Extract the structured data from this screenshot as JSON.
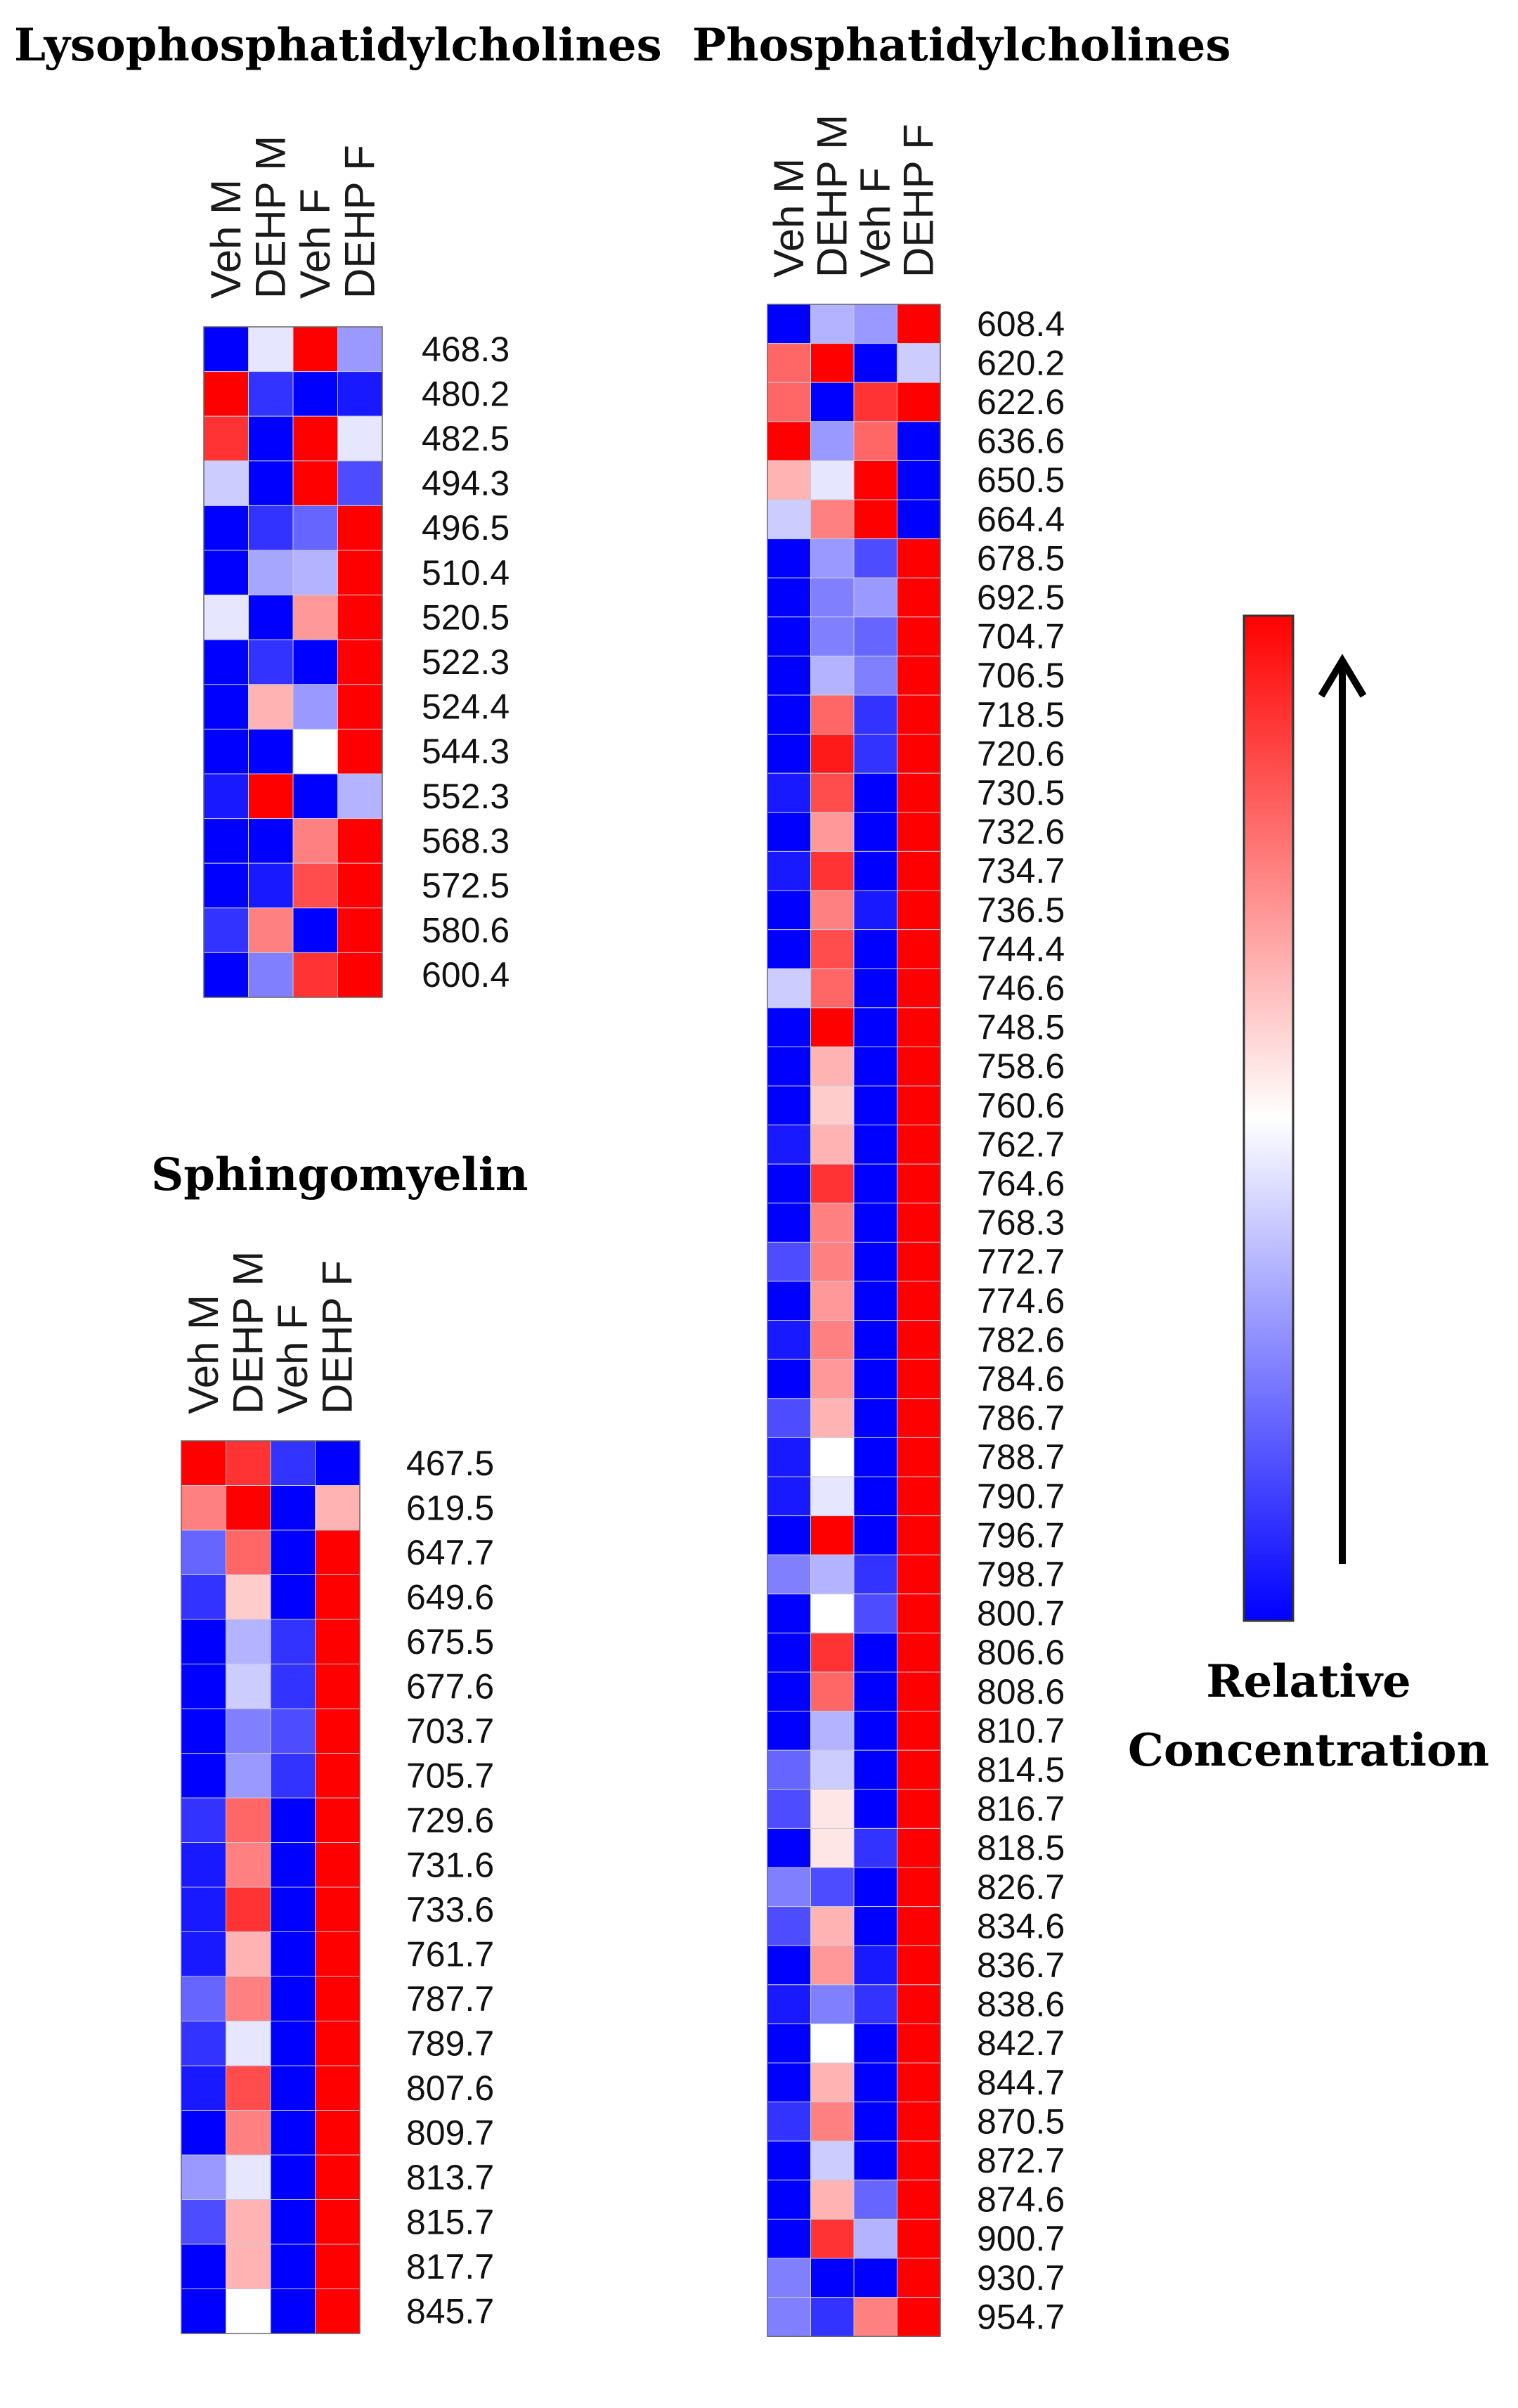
{
  "chart_data": [
    {
      "type": "heatmap",
      "title": "Lysophosphatidylcholines",
      "columns": [
        "Veh M",
        "DEHP M",
        "Veh F",
        "DEHP F"
      ],
      "rows": [
        "468.3",
        "480.2",
        "482.5",
        "494.3",
        "496.5",
        "510.4",
        "520.5",
        "522.3",
        "524.4",
        "544.3",
        "552.3",
        "568.3",
        "572.5",
        "580.6",
        "600.4"
      ],
      "values": [
        [
          -1.0,
          -0.1,
          1.0,
          -0.4
        ],
        [
          1.0,
          -0.8,
          -1.0,
          -0.9
        ],
        [
          0.8,
          -1.0,
          1.0,
          -0.1
        ],
        [
          -0.2,
          -1.0,
          1.0,
          -0.7
        ],
        [
          -1.0,
          -0.8,
          -0.6,
          1.0
        ],
        [
          -1.0,
          -0.35,
          -0.3,
          1.0
        ],
        [
          -0.1,
          -1.0,
          0.4,
          1.0
        ],
        [
          -1.0,
          -0.8,
          -1.0,
          1.0
        ],
        [
          -1.0,
          0.3,
          -0.4,
          1.0
        ],
        [
          -1.0,
          -1.0,
          0.0,
          1.0
        ],
        [
          -0.9,
          1.0,
          -1.0,
          -0.3
        ],
        [
          -1.0,
          -1.0,
          0.5,
          1.0
        ],
        [
          -1.0,
          -0.9,
          0.7,
          1.0
        ],
        [
          -0.8,
          0.5,
          -1.0,
          1.0
        ],
        [
          -1.0,
          -0.5,
          0.8,
          1.0
        ]
      ]
    },
    {
      "type": "heatmap",
      "title": "Sphingomyelin",
      "columns": [
        "Veh M",
        "DEHP M",
        "Veh F",
        "DEHP F"
      ],
      "rows": [
        "467.5",
        "619.5",
        "647.7",
        "649.6",
        "675.5",
        "677.6",
        "703.7",
        "705.7",
        "729.6",
        "731.6",
        "733.6",
        "761.7",
        "787.7",
        "789.7",
        "807.6",
        "809.7",
        "813.7",
        "815.7",
        "817.7",
        "845.7"
      ],
      "values": [
        [
          1.0,
          0.8,
          -0.8,
          -1.0
        ],
        [
          0.5,
          1.0,
          -1.0,
          0.3
        ],
        [
          -0.6,
          0.6,
          -1.0,
          1.0
        ],
        [
          -0.8,
          0.2,
          -1.0,
          1.0
        ],
        [
          -1.0,
          -0.3,
          -0.8,
          1.0
        ],
        [
          -1.0,
          -0.2,
          -0.8,
          1.0
        ],
        [
          -1.0,
          -0.5,
          -0.7,
          1.0
        ],
        [
          -1.0,
          -0.4,
          -0.8,
          1.0
        ],
        [
          -0.8,
          0.6,
          -1.0,
          1.0
        ],
        [
          -0.9,
          0.5,
          -1.0,
          1.0
        ],
        [
          -0.9,
          0.8,
          -1.0,
          1.0
        ],
        [
          -0.9,
          0.3,
          -1.0,
          1.0
        ],
        [
          -0.6,
          0.5,
          -1.0,
          1.0
        ],
        [
          -0.8,
          -0.1,
          -1.0,
          1.0
        ],
        [
          -0.9,
          0.7,
          -1.0,
          1.0
        ],
        [
          -1.0,
          0.5,
          -1.0,
          1.0
        ],
        [
          -0.4,
          -0.1,
          -1.0,
          1.0
        ],
        [
          -0.7,
          0.3,
          -1.0,
          1.0
        ],
        [
          -1.0,
          0.3,
          -1.0,
          1.0
        ],
        [
          -1.0,
          0.0,
          -1.0,
          1.0
        ]
      ]
    },
    {
      "type": "heatmap",
      "title": "Phosphatidylcholines",
      "columns": [
        "Veh M",
        "DEHP M",
        "Veh F",
        "DEHP F"
      ],
      "rows": [
        "608.4",
        "620.2",
        "622.6",
        "636.6",
        "650.5",
        "664.4",
        "678.5",
        "692.5",
        "704.7",
        "706.5",
        "718.5",
        "720.6",
        "730.5",
        "732.6",
        "734.7",
        "736.5",
        "744.4",
        "746.6",
        "748.5",
        "758.6",
        "760.6",
        "762.7",
        "764.6",
        "768.3",
        "772.7",
        "774.6",
        "782.6",
        "784.6",
        "786.7",
        "788.7",
        "790.7",
        "796.7",
        "798.7",
        "800.7",
        "806.6",
        "808.6",
        "810.7",
        "814.5",
        "816.7",
        "818.5",
        "826.7",
        "834.6",
        "836.7",
        "838.6",
        "842.7",
        "844.7",
        "870.5",
        "872.7",
        "874.6",
        "900.7",
        "930.7",
        "954.7"
      ],
      "values": [
        [
          -1.0,
          -0.3,
          -0.4,
          1.0
        ],
        [
          0.6,
          1.0,
          -1.0,
          -0.2
        ],
        [
          0.6,
          -1.0,
          0.8,
          1.0
        ],
        [
          1.0,
          -0.4,
          0.6,
          -1.0
        ],
        [
          0.3,
          -0.1,
          1.0,
          -1.0
        ],
        [
          -0.2,
          0.5,
          1.0,
          -1.0
        ],
        [
          -1.0,
          -0.4,
          -0.7,
          1.0
        ],
        [
          -1.0,
          -0.5,
          -0.4,
          1.0
        ],
        [
          -1.0,
          -0.5,
          -0.6,
          1.0
        ],
        [
          -1.0,
          -0.3,
          -0.5,
          1.0
        ],
        [
          -1.0,
          0.6,
          -0.8,
          1.0
        ],
        [
          -1.0,
          0.9,
          -0.8,
          1.0
        ],
        [
          -0.9,
          0.7,
          -1.0,
          1.0
        ],
        [
          -1.0,
          0.4,
          -1.0,
          1.0
        ],
        [
          -0.9,
          0.8,
          -1.0,
          1.0
        ],
        [
          -1.0,
          0.5,
          -0.9,
          1.0
        ],
        [
          -1.0,
          0.7,
          -1.0,
          1.0
        ],
        [
          -0.2,
          0.6,
          -1.0,
          1.0
        ],
        [
          -1.0,
          1.0,
          -1.0,
          1.0
        ],
        [
          -1.0,
          0.3,
          -1.0,
          1.0
        ],
        [
          -1.0,
          0.2,
          -1.0,
          1.0
        ],
        [
          -0.9,
          0.3,
          -1.0,
          1.0
        ],
        [
          -1.0,
          0.8,
          -1.0,
          1.0
        ],
        [
          -1.0,
          0.5,
          -1.0,
          1.0
        ],
        [
          -0.7,
          0.5,
          -1.0,
          1.0
        ],
        [
          -1.0,
          0.4,
          -1.0,
          1.0
        ],
        [
          -0.9,
          0.5,
          -1.0,
          1.0
        ],
        [
          -1.0,
          0.4,
          -1.0,
          1.0
        ],
        [
          -0.7,
          0.3,
          -1.0,
          1.0
        ],
        [
          -0.9,
          0.0,
          -1.0,
          1.0
        ],
        [
          -0.9,
          -0.1,
          -1.0,
          1.0
        ],
        [
          -1.0,
          1.0,
          -1.0,
          1.0
        ],
        [
          -0.5,
          -0.3,
          -0.8,
          1.0
        ],
        [
          -1.0,
          0.0,
          -0.7,
          1.0
        ],
        [
          -1.0,
          0.8,
          -1.0,
          1.0
        ],
        [
          -1.0,
          0.6,
          -1.0,
          1.0
        ],
        [
          -1.0,
          -0.3,
          -1.0,
          1.0
        ],
        [
          -0.6,
          -0.2,
          -1.0,
          1.0
        ],
        [
          -0.7,
          0.1,
          -1.0,
          1.0
        ],
        [
          -1.0,
          0.1,
          -0.8,
          1.0
        ],
        [
          -0.5,
          -0.7,
          -1.0,
          1.0
        ],
        [
          -0.7,
          0.3,
          -1.0,
          1.0
        ],
        [
          -1.0,
          0.4,
          -0.9,
          1.0
        ],
        [
          -0.9,
          -0.5,
          -0.8,
          1.0
        ],
        [
          -1.0,
          0.0,
          -1.0,
          1.0
        ],
        [
          -1.0,
          0.3,
          -1.0,
          1.0
        ],
        [
          -0.8,
          0.5,
          -1.0,
          1.0
        ],
        [
          -1.0,
          -0.2,
          -1.0,
          1.0
        ],
        [
          -1.0,
          0.3,
          -0.6,
          1.0
        ],
        [
          -1.0,
          0.8,
          -0.3,
          1.0
        ],
        [
          -0.5,
          -1.0,
          -1.0,
          1.0
        ],
        [
          -0.5,
          -0.8,
          0.5,
          1.0
        ]
      ]
    }
  ],
  "legend": {
    "label_line1": "Relative",
    "label_line2": "Concentration",
    "low_color": "#0000ff",
    "mid_color": "#ffffff",
    "high_color": "#ff0000"
  }
}
